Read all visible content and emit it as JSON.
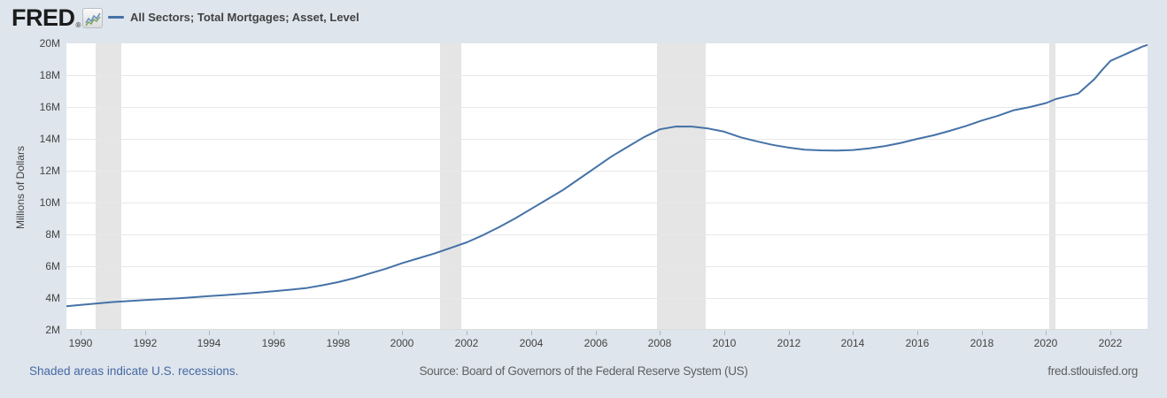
{
  "header": {
    "logo": "FRED",
    "registered": "®"
  },
  "legend": {
    "label": "All Sectors; Total Mortgages; Asset, Level",
    "line_color": "#4572a7"
  },
  "footer": {
    "recession_note": "Shaded areas indicate U.S. recessions.",
    "source": "Source: Board of Governors of the Federal Reserve System (US)",
    "site": "fred.stlouisfed.org"
  },
  "colors": {
    "page_background": "#dee5ec",
    "plot_background": "#ffffff",
    "recession_band": "#e5e5e5",
    "gridline": "#e8e8e8",
    "line": "#4572a7",
    "axis_text": "#444444",
    "link_blue": "#4569a5"
  },
  "chart_data": {
    "type": "line",
    "title": "All Sectors; Total Mortgages; Asset, Level",
    "xlabel": "",
    "ylabel": "Millions of Dollars",
    "ylim": [
      2,
      20
    ],
    "xlim": [
      1989.56,
      2023.15
    ],
    "grid": "horizontal",
    "legend_position": "top-left",
    "yticks": [
      {
        "value": 2,
        "label": "2M"
      },
      {
        "value": 4,
        "label": "4M"
      },
      {
        "value": 6,
        "label": "6M"
      },
      {
        "value": 8,
        "label": "8M"
      },
      {
        "value": 10,
        "label": "10M"
      },
      {
        "value": 12,
        "label": "12M"
      },
      {
        "value": 14,
        "label": "14M"
      },
      {
        "value": 16,
        "label": "16M"
      },
      {
        "value": 18,
        "label": "18M"
      },
      {
        "value": 20,
        "label": "20M"
      }
    ],
    "xticks": [
      1990,
      1992,
      1994,
      1996,
      1998,
      2000,
      2002,
      2004,
      2006,
      2008,
      2010,
      2012,
      2014,
      2016,
      2018,
      2020,
      2022
    ],
    "recession_bands": [
      [
        1990.47,
        1991.27
      ],
      [
        2001.16,
        2001.84
      ],
      [
        2007.92,
        2009.42
      ],
      [
        2020.1,
        2020.29
      ]
    ],
    "series": [
      {
        "name": "All Sectors; Total Mortgages; Asset, Level",
        "color": "#4572a7",
        "points": [
          [
            1989.56,
            3.49
          ],
          [
            1990.0,
            3.57
          ],
          [
            1990.5,
            3.66
          ],
          [
            1991.0,
            3.75
          ],
          [
            1991.5,
            3.81
          ],
          [
            1992.0,
            3.87
          ],
          [
            1992.5,
            3.93
          ],
          [
            1993.0,
            3.98
          ],
          [
            1993.5,
            4.05
          ],
          [
            1994.0,
            4.12
          ],
          [
            1994.5,
            4.19
          ],
          [
            1995.0,
            4.26
          ],
          [
            1995.5,
            4.34
          ],
          [
            1996.0,
            4.43
          ],
          [
            1996.5,
            4.52
          ],
          [
            1997.0,
            4.62
          ],
          [
            1997.5,
            4.8
          ],
          [
            1998.0,
            5.0
          ],
          [
            1998.5,
            5.25
          ],
          [
            1999.0,
            5.55
          ],
          [
            1999.5,
            5.85
          ],
          [
            2000.0,
            6.2
          ],
          [
            2000.5,
            6.5
          ],
          [
            2001.0,
            6.8
          ],
          [
            2001.5,
            7.15
          ],
          [
            2002.0,
            7.5
          ],
          [
            2002.5,
            7.95
          ],
          [
            2003.0,
            8.45
          ],
          [
            2003.5,
            9.0
          ],
          [
            2004.0,
            9.6
          ],
          [
            2004.5,
            10.2
          ],
          [
            2005.0,
            10.8
          ],
          [
            2005.5,
            11.5
          ],
          [
            2006.0,
            12.2
          ],
          [
            2006.5,
            12.9
          ],
          [
            2007.0,
            13.5
          ],
          [
            2007.5,
            14.1
          ],
          [
            2008.0,
            14.6
          ],
          [
            2008.5,
            14.78
          ],
          [
            2009.0,
            14.77
          ],
          [
            2009.5,
            14.65
          ],
          [
            2010.0,
            14.45
          ],
          [
            2010.5,
            14.1
          ],
          [
            2011.0,
            13.85
          ],
          [
            2011.5,
            13.62
          ],
          [
            2012.0,
            13.45
          ],
          [
            2012.5,
            13.32
          ],
          [
            2013.0,
            13.28
          ],
          [
            2013.5,
            13.26
          ],
          [
            2014.0,
            13.3
          ],
          [
            2014.5,
            13.4
          ],
          [
            2015.0,
            13.55
          ],
          [
            2015.5,
            13.75
          ],
          [
            2016.0,
            14.0
          ],
          [
            2016.5,
            14.22
          ],
          [
            2017.0,
            14.5
          ],
          [
            2017.5,
            14.8
          ],
          [
            2018.0,
            15.15
          ],
          [
            2018.5,
            15.45
          ],
          [
            2019.0,
            15.8
          ],
          [
            2019.5,
            16.0
          ],
          [
            2020.0,
            16.25
          ],
          [
            2020.3,
            16.5
          ],
          [
            2020.6,
            16.65
          ],
          [
            2021.0,
            16.85
          ],
          [
            2021.25,
            17.3
          ],
          [
            2021.5,
            17.75
          ],
          [
            2021.75,
            18.35
          ],
          [
            2022.0,
            18.9
          ],
          [
            2022.5,
            19.35
          ],
          [
            2023.0,
            19.8
          ],
          [
            2023.15,
            19.9
          ]
        ]
      }
    ]
  }
}
